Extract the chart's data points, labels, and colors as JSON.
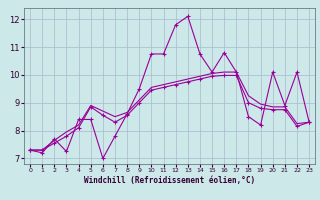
{
  "xlabel": "Windchill (Refroidissement éolien,°C)",
  "x": [
    0,
    1,
    2,
    3,
    4,
    5,
    6,
    7,
    8,
    9,
    10,
    11,
    12,
    13,
    14,
    15,
    16,
    17,
    18,
    19,
    20,
    21,
    22,
    23
  ],
  "line1": [
    7.3,
    7.2,
    7.7,
    7.25,
    8.4,
    8.4,
    7.0,
    7.8,
    8.6,
    9.5,
    10.75,
    10.75,
    11.8,
    12.1,
    10.75,
    10.1,
    10.8,
    10.1,
    8.5,
    8.2,
    10.1,
    8.9,
    10.1,
    8.3
  ],
  "line2": [
    7.3,
    7.3,
    7.55,
    7.8,
    8.1,
    8.85,
    8.55,
    8.3,
    8.55,
    9.0,
    9.45,
    9.55,
    9.65,
    9.75,
    9.85,
    9.95,
    9.98,
    9.98,
    9.0,
    8.8,
    8.75,
    8.75,
    8.15,
    8.3
  ],
  "line3": [
    7.3,
    7.3,
    7.65,
    7.95,
    8.2,
    8.9,
    8.7,
    8.5,
    8.65,
    9.1,
    9.55,
    9.65,
    9.75,
    9.85,
    9.95,
    10.05,
    10.1,
    10.1,
    9.25,
    8.95,
    8.85,
    8.85,
    8.25,
    8.3
  ],
  "line_color": "#990099",
  "bg_color": "#cce8e8",
  "grid_color": "#aab8cc",
  "ylim": [
    6.8,
    12.4
  ],
  "yticks": [
    7,
    8,
    9,
    10,
    11,
    12
  ],
  "xticks": [
    0,
    1,
    2,
    3,
    4,
    5,
    6,
    7,
    8,
    9,
    10,
    11,
    12,
    13,
    14,
    15,
    16,
    17,
    18,
    19,
    20,
    21,
    22,
    23
  ]
}
